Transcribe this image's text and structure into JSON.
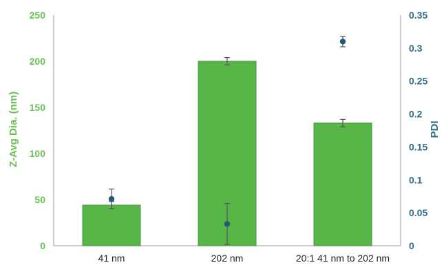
{
  "chart_data": {
    "type": "bar",
    "categories": [
      "41 nm",
      "202 nm",
      "20:1 41 nm to 202 nm"
    ],
    "ylabel": "Z-Avg Dia. (nm)",
    "ylim": [
      0,
      250
    ],
    "yticks": [
      "0",
      "50",
      "100",
      "150",
      "200",
      "250"
    ],
    "y2label": "PDI",
    "y2lim": [
      0,
      0.35
    ],
    "y2ticks": [
      "0",
      "0.05",
      "0.1",
      "0.15",
      "0.2",
      "0.25",
      "0.3",
      "0.35"
    ],
    "bar_values": [
      44,
      200,
      133
    ],
    "bar_errors": [
      4,
      4,
      4
    ],
    "point_values": [
      0.071,
      0.033,
      0.31
    ],
    "point_errors": [
      0.015,
      0.031,
      0.008
    ],
    "grid": false,
    "colors": {
      "bar": "#58b548",
      "bar_edge": "#3f9a36",
      "point": "#1f5b74",
      "error_bar": "#555555",
      "left_axis": "#6cbf55",
      "right_axis": "#2e6e86",
      "axis_line": "#9a9a9a"
    }
  }
}
